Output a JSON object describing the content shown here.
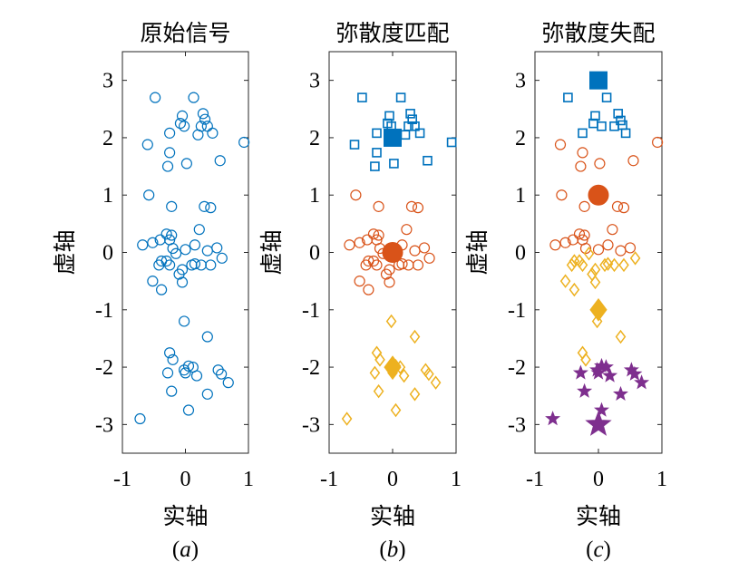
{
  "chart_data": [
    {
      "type": "scatter",
      "title": "原始信号",
      "subtitle": "(a)",
      "xlabel": "实轴",
      "ylabel": "虚轴",
      "xlim": [
        -1,
        1
      ],
      "ylim": [
        -3.5,
        3.5
      ],
      "xticks": [
        "-1",
        "0",
        "1"
      ],
      "yticks": [
        "3",
        "2",
        "1",
        "0",
        "-1",
        "-2",
        "-3"
      ],
      "grid": false,
      "series": [
        {
          "marker": "circle",
          "color": "#0072BD",
          "filled": false,
          "points": [
            [
              -0.48,
              2.7
            ],
            [
              0.13,
              2.7
            ],
            [
              -0.05,
              2.38
            ],
            [
              0.28,
              2.42
            ],
            [
              0.31,
              2.32
            ],
            [
              -0.08,
              2.25
            ],
            [
              -0.02,
              2.2
            ],
            [
              0.25,
              2.2
            ],
            [
              0.35,
              2.2
            ],
            [
              -0.25,
              2.08
            ],
            [
              0.43,
              2.08
            ],
            [
              0.2,
              2.05
            ],
            [
              0.93,
              1.92
            ],
            [
              -0.6,
              1.88
            ],
            [
              -0.25,
              1.74
            ],
            [
              0.55,
              1.6
            ],
            [
              0.02,
              1.55
            ],
            [
              -0.28,
              1.5
            ],
            [
              -0.58,
              1.0
            ],
            [
              -0.22,
              0.8
            ],
            [
              0.3,
              0.8
            ],
            [
              0.4,
              0.78
            ],
            [
              0.22,
              0.4
            ],
            [
              -0.3,
              0.32
            ],
            [
              -0.22,
              0.3
            ],
            [
              -0.25,
              0.22
            ],
            [
              -0.4,
              0.22
            ],
            [
              -0.52,
              0.17
            ],
            [
              -0.68,
              0.13
            ],
            [
              0.15,
              0.13
            ],
            [
              0.5,
              0.08
            ],
            [
              -0.2,
              0.07
            ],
            [
              0.0,
              0.05
            ],
            [
              0.35,
              0.03
            ],
            [
              -0.15,
              -0.02
            ],
            [
              0.58,
              -0.1
            ],
            [
              -0.38,
              -0.15
            ],
            [
              -0.3,
              -0.15
            ],
            [
              -0.25,
              -0.22
            ],
            [
              0.15,
              -0.2
            ],
            [
              0.1,
              -0.22
            ],
            [
              0.4,
              -0.22
            ],
            [
              -0.42,
              -0.22
            ],
            [
              0.25,
              -0.22
            ],
            [
              -0.05,
              -0.3
            ],
            [
              -0.1,
              -0.38
            ],
            [
              -0.52,
              -0.5
            ],
            [
              -0.05,
              -0.52
            ],
            [
              -0.38,
              -0.65
            ],
            [
              -0.02,
              -1.2
            ],
            [
              0.35,
              -1.47
            ],
            [
              -0.25,
              -1.75
            ],
            [
              -0.2,
              -1.87
            ],
            [
              0.05,
              -1.98
            ],
            [
              0.12,
              -2.0
            ],
            [
              -0.02,
              -2.05
            ],
            [
              0.52,
              -2.05
            ],
            [
              0.57,
              -2.12
            ],
            [
              -0.28,
              -2.1
            ],
            [
              0.0,
              -2.1
            ],
            [
              0.18,
              -2.15
            ],
            [
              0.68,
              -2.27
            ],
            [
              -0.22,
              -2.42
            ],
            [
              0.35,
              -2.47
            ],
            [
              0.05,
              -2.75
            ],
            [
              -0.72,
              -2.9
            ]
          ]
        }
      ]
    },
    {
      "type": "scatter",
      "title": "弥散度匹配",
      "subtitle": "(b)",
      "xlabel": "实轴",
      "ylabel": "虚轴",
      "xlim": [
        -1,
        1
      ],
      "ylim": [
        -3.5,
        3.5
      ],
      "xticks": [
        "-1",
        "0",
        "1"
      ],
      "yticks": [
        "3",
        "2",
        "1",
        "0",
        "-1",
        "-2",
        "-3"
      ],
      "grid": false,
      "series": [
        {
          "marker": "square",
          "color": "#0072BD",
          "filled": false,
          "points": [
            [
              -0.48,
              2.7
            ],
            [
              0.13,
              2.7
            ],
            [
              -0.05,
              2.38
            ],
            [
              0.28,
              2.42
            ],
            [
              0.31,
              2.32
            ],
            [
              -0.08,
              2.25
            ],
            [
              -0.02,
              2.2
            ],
            [
              0.25,
              2.2
            ],
            [
              0.35,
              2.2
            ],
            [
              -0.25,
              2.08
            ],
            [
              0.43,
              2.08
            ],
            [
              0.2,
              2.05
            ],
            [
              0.93,
              1.92
            ],
            [
              -0.6,
              1.88
            ],
            [
              -0.25,
              1.74
            ],
            [
              0.55,
              1.6
            ],
            [
              0.02,
              1.55
            ],
            [
              -0.28,
              1.5
            ]
          ]
        },
        {
          "marker": "square",
          "color": "#0072BD",
          "filled": true,
          "big": true,
          "points": [
            [
              0,
              2
            ]
          ]
        },
        {
          "marker": "circle",
          "color": "#D95319",
          "filled": false,
          "points": [
            [
              -0.58,
              1.0
            ],
            [
              -0.22,
              0.8
            ],
            [
              0.3,
              0.8
            ],
            [
              0.4,
              0.78
            ],
            [
              0.22,
              0.4
            ],
            [
              -0.3,
              0.32
            ],
            [
              -0.22,
              0.3
            ],
            [
              -0.25,
              0.22
            ],
            [
              -0.4,
              0.22
            ],
            [
              -0.52,
              0.17
            ],
            [
              -0.68,
              0.13
            ],
            [
              0.15,
              0.13
            ],
            [
              0.5,
              0.08
            ],
            [
              -0.2,
              0.07
            ],
            [
              0.0,
              0.05
            ],
            [
              0.35,
              0.03
            ],
            [
              -0.15,
              -0.02
            ],
            [
              0.58,
              -0.1
            ],
            [
              -0.38,
              -0.15
            ],
            [
              -0.3,
              -0.15
            ],
            [
              -0.25,
              -0.22
            ],
            [
              0.15,
              -0.2
            ],
            [
              0.1,
              -0.22
            ],
            [
              0.4,
              -0.22
            ],
            [
              -0.42,
              -0.22
            ],
            [
              0.25,
              -0.22
            ],
            [
              -0.05,
              -0.3
            ],
            [
              -0.1,
              -0.38
            ],
            [
              -0.52,
              -0.5
            ],
            [
              -0.05,
              -0.52
            ],
            [
              -0.38,
              -0.65
            ]
          ]
        },
        {
          "marker": "circle",
          "color": "#D95319",
          "filled": true,
          "big": true,
          "points": [
            [
              0,
              0
            ]
          ]
        },
        {
          "marker": "diamond",
          "color": "#EDB120",
          "filled": false,
          "points": [
            [
              -0.02,
              -1.2
            ],
            [
              0.35,
              -1.47
            ],
            [
              -0.25,
              -1.75
            ],
            [
              -0.2,
              -1.87
            ],
            [
              0.05,
              -1.98
            ],
            [
              0.12,
              -2.0
            ],
            [
              -0.02,
              -2.05
            ],
            [
              0.52,
              -2.05
            ],
            [
              0.57,
              -2.12
            ],
            [
              -0.28,
              -2.1
            ],
            [
              0.0,
              -2.1
            ],
            [
              0.18,
              -2.15
            ],
            [
              0.68,
              -2.27
            ],
            [
              -0.22,
              -2.42
            ],
            [
              0.35,
              -2.47
            ],
            [
              0.05,
              -2.75
            ],
            [
              -0.72,
              -2.9
            ]
          ]
        },
        {
          "marker": "diamond",
          "color": "#EDB120",
          "filled": true,
          "big": true,
          "points": [
            [
              0,
              -2
            ]
          ]
        }
      ]
    },
    {
      "type": "scatter",
      "title": "弥散度失配",
      "subtitle": "(c)",
      "xlabel": "实轴",
      "ylabel": "虚轴",
      "xlim": [
        -1,
        1
      ],
      "ylim": [
        -3.5,
        3.5
      ],
      "xticks": [
        "-1",
        "0",
        "1"
      ],
      "yticks": [
        "3",
        "2",
        "1",
        "0",
        "-1",
        "-2",
        "-3"
      ],
      "grid": false,
      "series": [
        {
          "marker": "square",
          "color": "#0072BD",
          "filled": false,
          "points": [
            [
              -0.48,
              2.7
            ],
            [
              0.13,
              2.7
            ],
            [
              -0.05,
              2.38
            ],
            [
              0.31,
              2.42
            ],
            [
              0.35,
              2.3
            ],
            [
              -0.08,
              2.25
            ],
            [
              0.25,
              2.2
            ],
            [
              0.38,
              2.22
            ],
            [
              -0.25,
              2.08
            ],
            [
              0.43,
              2.08
            ],
            [
              0.05,
              2.2
            ]
          ]
        },
        {
          "marker": "square",
          "color": "#0072BD",
          "filled": true,
          "big": true,
          "points": [
            [
              0,
              3
            ]
          ]
        },
        {
          "marker": "circle",
          "color": "#D95319",
          "filled": false,
          "points": [
            [
              0.93,
              1.92
            ],
            [
              -0.6,
              1.88
            ],
            [
              -0.25,
              1.74
            ],
            [
              0.55,
              1.6
            ],
            [
              0.02,
              1.55
            ],
            [
              -0.28,
              1.5
            ],
            [
              -0.58,
              1.0
            ],
            [
              -0.22,
              0.8
            ],
            [
              0.3,
              0.8
            ],
            [
              0.4,
              0.78
            ],
            [
              0.22,
              0.4
            ],
            [
              -0.3,
              0.32
            ],
            [
              -0.22,
              0.3
            ],
            [
              -0.25,
              0.22
            ],
            [
              -0.4,
              0.22
            ],
            [
              -0.52,
              0.17
            ],
            [
              -0.68,
              0.13
            ],
            [
              0.15,
              0.13
            ],
            [
              0.5,
              0.08
            ],
            [
              -0.2,
              0.07
            ],
            [
              0.0,
              0.05
            ],
            [
              0.35,
              0.03
            ]
          ]
        },
        {
          "marker": "circle",
          "color": "#D95319",
          "filled": true,
          "big": true,
          "points": [
            [
              0,
              1
            ]
          ]
        },
        {
          "marker": "diamond",
          "color": "#EDB120",
          "filled": false,
          "points": [
            [
              -0.15,
              -0.02
            ],
            [
              0.58,
              -0.1
            ],
            [
              -0.38,
              -0.15
            ],
            [
              -0.3,
              -0.15
            ],
            [
              -0.25,
              -0.22
            ],
            [
              0.15,
              -0.2
            ],
            [
              0.1,
              -0.22
            ],
            [
              0.4,
              -0.22
            ],
            [
              -0.42,
              -0.22
            ],
            [
              0.25,
              -0.22
            ],
            [
              -0.05,
              -0.3
            ],
            [
              -0.1,
              -0.38
            ],
            [
              -0.52,
              -0.5
            ],
            [
              -0.05,
              -0.52
            ],
            [
              -0.38,
              -0.65
            ],
            [
              -0.02,
              -1.2
            ],
            [
              0.35,
              -1.47
            ],
            [
              -0.25,
              -1.75
            ],
            [
              -0.2,
              -1.87
            ]
          ]
        },
        {
          "marker": "diamond",
          "color": "#EDB120",
          "filled": true,
          "big": true,
          "points": [
            [
              0,
              -1
            ]
          ]
        },
        {
          "marker": "star",
          "color": "#7E2F8E",
          "filled": true,
          "points": [
            [
              0.05,
              -1.98
            ],
            [
              0.12,
              -2.0
            ],
            [
              -0.02,
              -2.05
            ],
            [
              0.52,
              -2.05
            ],
            [
              0.57,
              -2.12
            ],
            [
              -0.28,
              -2.1
            ],
            [
              0.0,
              -2.1
            ],
            [
              0.18,
              -2.15
            ],
            [
              0.68,
              -2.27
            ],
            [
              -0.22,
              -2.42
            ],
            [
              0.35,
              -2.47
            ],
            [
              0.05,
              -2.75
            ],
            [
              -0.72,
              -2.9
            ]
          ]
        },
        {
          "marker": "star",
          "color": "#7E2F8E",
          "filled": true,
          "big": true,
          "points": [
            [
              0,
              -3
            ]
          ]
        }
      ]
    }
  ]
}
